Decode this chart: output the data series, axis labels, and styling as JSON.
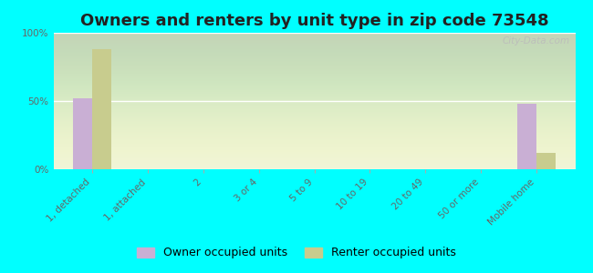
{
  "title": "Owners and renters by unit type in zip code 73548",
  "categories": [
    "1, detached",
    "1, attached",
    "2",
    "3 or 4",
    "5 to 9",
    "10 to 19",
    "20 to 49",
    "50 or more",
    "Mobile home"
  ],
  "owner_values": [
    52,
    0,
    0,
    0,
    0,
    0,
    0,
    0,
    48
  ],
  "renter_values": [
    88,
    0,
    0,
    0,
    0,
    0,
    0,
    0,
    12
  ],
  "owner_color": "#c9afd4",
  "renter_color": "#c8cc8e",
  "background_color": "#00ffff",
  "ylim": [
    0,
    100
  ],
  "yticks": [
    0,
    50,
    100
  ],
  "ytick_labels": [
    "0%",
    "50%",
    "100%"
  ],
  "bar_width": 0.35,
  "legend_owner": "Owner occupied units",
  "legend_renter": "Renter occupied units",
  "title_fontsize": 13,
  "tick_fontsize": 7.5,
  "legend_fontsize": 9,
  "watermark": "City-Data.com"
}
